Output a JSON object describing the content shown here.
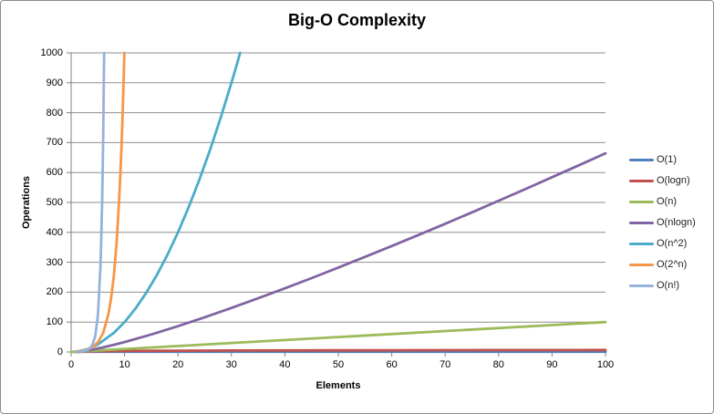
{
  "chart_data": {
    "type": "line",
    "title": "Big-O Complexity",
    "xlabel": "Elements",
    "ylabel": "Operations",
    "xlim": [
      0,
      100
    ],
    "ylim": [
      0,
      1000
    ],
    "xticks": [
      0,
      10,
      20,
      30,
      40,
      50,
      60,
      70,
      80,
      90,
      100
    ],
    "yticks": [
      0,
      100,
      200,
      300,
      400,
      500,
      600,
      700,
      800,
      900,
      1000
    ],
    "grid": "horizontal-only",
    "legend_position": "right",
    "colors": {
      "gridline": "#8e8e8e",
      "axis": "#808080",
      "tick_label": "#000000",
      "background": "#ffffff"
    },
    "series": [
      {
        "name": "O(1)",
        "color": "#4F81BD",
        "points": [
          [
            0.5,
            1
          ],
          [
            100,
            1
          ]
        ]
      },
      {
        "name": "O(logn)",
        "color": "#C0504D",
        "points": [
          [
            1,
            0
          ],
          [
            1.5,
            0.6
          ],
          [
            2,
            1
          ],
          [
            3,
            1.6
          ],
          [
            4,
            2
          ],
          [
            6,
            2.6
          ],
          [
            8,
            3
          ],
          [
            10,
            3.3
          ],
          [
            15,
            3.9
          ],
          [
            20,
            4.3
          ],
          [
            30,
            4.9
          ],
          [
            40,
            5.3
          ],
          [
            50,
            5.6
          ],
          [
            60,
            5.9
          ],
          [
            70,
            6.1
          ],
          [
            80,
            6.3
          ],
          [
            90,
            6.5
          ],
          [
            100,
            6.6
          ]
        ]
      },
      {
        "name": "O(n)",
        "color": "#9BBB59",
        "points": [
          [
            0,
            0
          ],
          [
            100,
            100
          ]
        ]
      },
      {
        "name": "O(nlogn)",
        "color": "#8064A2",
        "points": [
          [
            1,
            0
          ],
          [
            2,
            2
          ],
          [
            4,
            8
          ],
          [
            6,
            15.5
          ],
          [
            8,
            24
          ],
          [
            10,
            33.2
          ],
          [
            15,
            58.6
          ],
          [
            20,
            86.4
          ],
          [
            25,
            116.1
          ],
          [
            30,
            147.2
          ],
          [
            35,
            179.6
          ],
          [
            40,
            212.9
          ],
          [
            45,
            247.1
          ],
          [
            50,
            282.2
          ],
          [
            55,
            318.0
          ],
          [
            60,
            354.4
          ],
          [
            65,
            391.3
          ],
          [
            70,
            428.8
          ],
          [
            75,
            466.9
          ],
          [
            80,
            505.8
          ],
          [
            85,
            544.5
          ],
          [
            90,
            584.3
          ],
          [
            95,
            624.1
          ],
          [
            100,
            664.4
          ]
        ]
      },
      {
        "name": "O(n^2)",
        "color": "#4BACC6",
        "points": [
          [
            1,
            1
          ],
          [
            3,
            9
          ],
          [
            5,
            25
          ],
          [
            8,
            64
          ],
          [
            10,
            100
          ],
          [
            12,
            144
          ],
          [
            14,
            196
          ],
          [
            16,
            256
          ],
          [
            18,
            324
          ],
          [
            20,
            400
          ],
          [
            22,
            484
          ],
          [
            24,
            576
          ],
          [
            26,
            676
          ],
          [
            28,
            784
          ],
          [
            30,
            900
          ],
          [
            31,
            961
          ],
          [
            31.62,
            1000
          ]
        ]
      },
      {
        "name": "O(2^n)",
        "color": "#F79646",
        "points": [
          [
            1,
            2
          ],
          [
            2,
            4
          ],
          [
            3,
            8
          ],
          [
            4,
            16
          ],
          [
            5,
            32
          ],
          [
            6,
            64
          ],
          [
            7,
            128
          ],
          [
            7.5,
            181
          ],
          [
            8,
            256
          ],
          [
            8.5,
            362
          ],
          [
            9,
            512
          ],
          [
            9.2,
            588
          ],
          [
            9.4,
            676
          ],
          [
            9.6,
            776
          ],
          [
            9.8,
            891
          ],
          [
            9.97,
            1000
          ]
        ]
      },
      {
        "name": "O(n!)",
        "color": "#95B3D7",
        "points": [
          [
            1,
            1
          ],
          [
            2,
            2
          ],
          [
            3,
            6
          ],
          [
            3.5,
            11.6
          ],
          [
            4,
            24
          ],
          [
            4.5,
            52.3
          ],
          [
            5,
            120
          ],
          [
            5.5,
            287.9
          ],
          [
            5.8,
            499
          ],
          [
            6,
            720
          ],
          [
            6.1,
            874
          ],
          [
            6.17,
            1000
          ]
        ]
      }
    ]
  }
}
